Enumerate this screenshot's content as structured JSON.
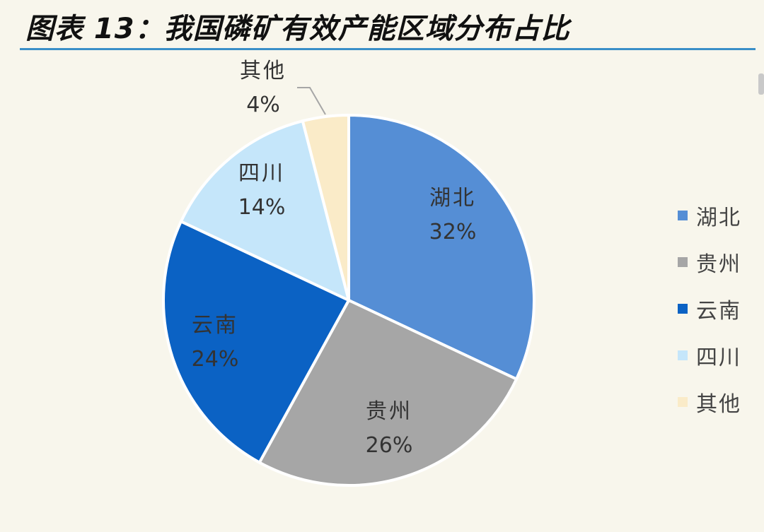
{
  "title": "图表 13：我国磷矿有效产能区域分布占比",
  "colors": {
    "title_rule": "#3a8fc7",
    "background": "#f8f6ec"
  },
  "chart_data": {
    "type": "pie",
    "title": "图表 13：我国磷矿有效产能区域分布占比",
    "legend_position": "right",
    "slices": [
      {
        "name": "湖北",
        "value": 32,
        "label": "32%",
        "color": "#558ed5"
      },
      {
        "name": "贵州",
        "value": 26,
        "label": "26%",
        "color": "#a6a6a6"
      },
      {
        "name": "云南",
        "value": 24,
        "label": "24%",
        "color": "#0b62c4"
      },
      {
        "name": "四川",
        "value": 14,
        "label": "14%",
        "color": "#c5e6fa"
      },
      {
        "name": "其他",
        "value": 4,
        "label": "4%",
        "color": "#faebc8"
      }
    ]
  }
}
